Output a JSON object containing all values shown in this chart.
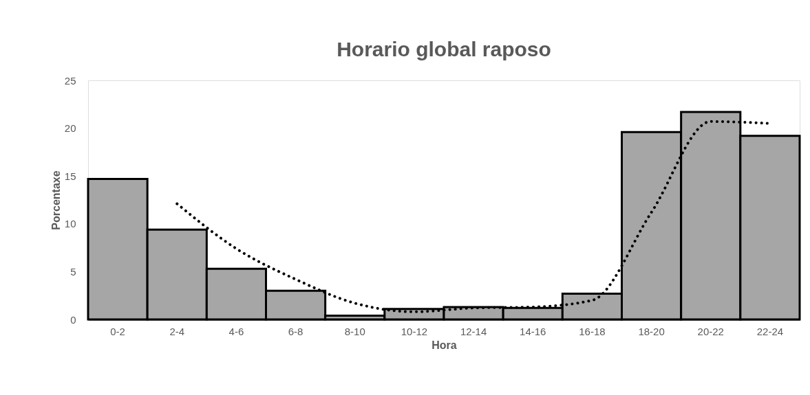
{
  "chart_data": {
    "type": "bar",
    "title": "Horario global raposo",
    "xlabel": "Hora",
    "ylabel": "Porcentaxe",
    "categories": [
      "0-2",
      "2-4",
      "4-6",
      "6-8",
      "8-10",
      "10-12",
      "12-14",
      "14-16",
      "16-18",
      "18-20",
      "20-22",
      "22-24"
    ],
    "series": [
      {
        "color": "#a6a6a6",
        "values": [
          14.7,
          9.4,
          5.3,
          3.0,
          0.4,
          1.1,
          1.3,
          1.2,
          2.7,
          19.6,
          21.7,
          19.2
        ]
      },
      {
        "type": "line",
        "color": "#000000",
        "line_style": "dotted",
        "values": [
          null,
          12.1,
          7.4,
          4.2,
          1.7,
          0.8,
          1.2,
          1.3,
          2.0,
          11.2,
          20.7,
          20.5
        ]
      }
    ],
    "ylim": [
      0,
      25
    ],
    "yticks": [
      0,
      5,
      10,
      15,
      20,
      25
    ]
  }
}
